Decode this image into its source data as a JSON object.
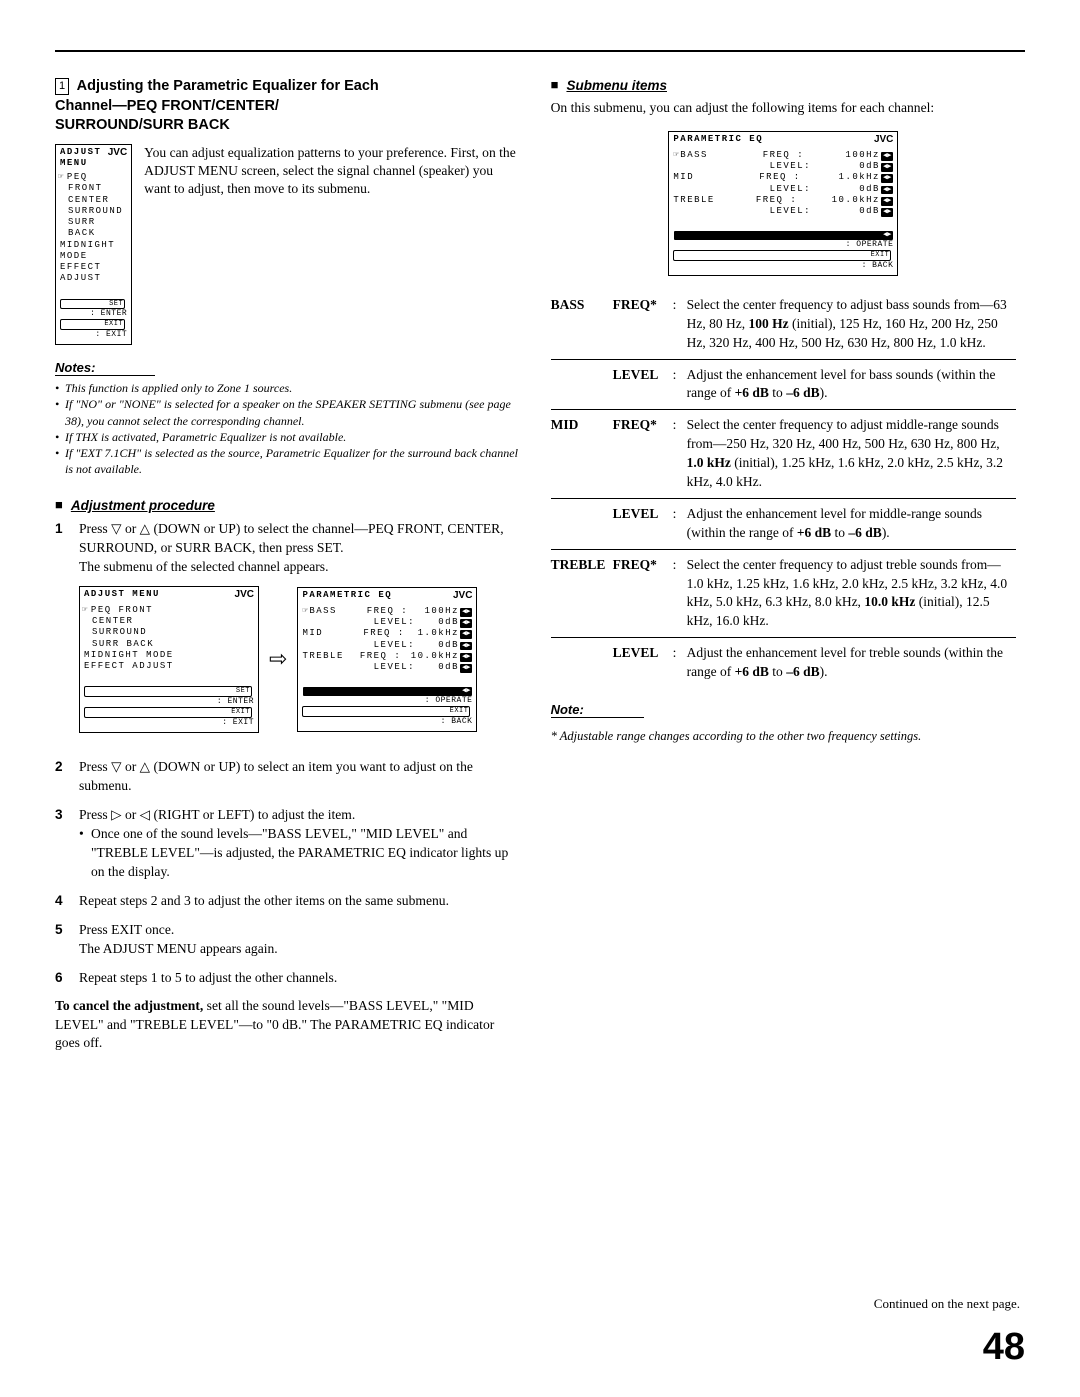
{
  "section_number": "1",
  "section_title_line1": "Adjusting the Parametric Equalizer for Each",
  "section_title_line2": "Channel—PEQ FRONT/CENTER/",
  "section_title_line3": "SURROUND/SURR BACK",
  "intro_para": "You can adjust equalization patterns to your preference. First, on the ADJUST MENU screen, select the signal channel (speaker) you want to adjust, then move to its submenu.",
  "adjust_menu": {
    "title": "ADJUST MENU",
    "brand": "JVC",
    "items": [
      "PEQ FRONT",
      "CENTER",
      "SURROUND",
      "SURR BACK",
      "MIDNIGHT MODE",
      "EFFECT ADJUST"
    ],
    "footer1": "SET",
    "footer1b": ": ENTER",
    "footer2": "EXIT",
    "footer2b": ": EXIT"
  },
  "notes_head": "Notes:",
  "notes": [
    "This function is applied only to Zone 1 sources.",
    "If \"NO\" or \"NONE\" is selected for a speaker on the SPEAKER SETTING submenu (see page 38), you cannot select the corresponding channel.",
    "If THX is activated, Parametric Equalizer is not available.",
    "If \"EXT 7.1CH\" is selected as the source, Parametric Equalizer for the surround back channel is not available."
  ],
  "adj_proc_head": "Adjustment procedure",
  "steps": [
    {
      "n": "1",
      "text": "Press ▽ or △ (DOWN or UP) to select the channel—PEQ FRONT, CENTER, SURROUND, or SURR BACK, then press SET.",
      "after": "The submenu of the selected channel appears."
    },
    {
      "n": "2",
      "text": "Press ▽ or △ (DOWN or UP) to select an item you want to adjust on the submenu."
    },
    {
      "n": "3",
      "text": "Press ▷ or ◁ (RIGHT or LEFT) to adjust the item.",
      "sub": "Once one of the sound levels—\"BASS LEVEL,\" \"MID LEVEL\" and \"TREBLE LEVEL\"—is adjusted, the PARAMETRIC EQ indicator lights up on the display."
    },
    {
      "n": "4",
      "text": "Repeat steps 2 and 3 to adjust the other items on the same submenu."
    },
    {
      "n": "5",
      "text": "Press EXIT once.",
      "after": "The ADJUST MENU appears again."
    },
    {
      "n": "6",
      "text": "Repeat steps 1 to 5 to adjust the other channels."
    }
  ],
  "cancel_lead": "To cancel the adjustment,",
  "cancel_rest": " set all the sound levels—\"BASS LEVEL,\" \"MID LEVEL\" and \"TREBLE LEVEL\"—to \"0 dB.\" The PARAMETRIC EQ indicator goes off.",
  "submenu_head": "Submenu items",
  "submenu_intro": "On this submenu, you can adjust the following items for each channel:",
  "param_menu": {
    "title": "PARAMETRIC EQ",
    "brand": "JVC",
    "rows": [
      {
        "label": "BASS",
        "p": "FREQ :",
        "v": "100Hz"
      },
      {
        "label": "",
        "p": "LEVEL:",
        "v": "0dB"
      },
      {
        "label": "MID",
        "p": "FREQ :",
        "v": "1.0kHz"
      },
      {
        "label": "",
        "p": "LEVEL:",
        "v": "0dB"
      },
      {
        "label": "TREBLE",
        "p": "FREQ :",
        "v": "10.0kHz"
      },
      {
        "label": "",
        "p": "LEVEL:",
        "v": "0dB"
      }
    ],
    "footer1b": ": OPERATE",
    "footer2": "EXIT",
    "footer2b": ": BACK"
  },
  "defs": [
    {
      "band": "BASS",
      "param": "FREQ*",
      "desc": "Select the center frequency to adjust bass sounds from—63 Hz, 80 Hz, <b>100 Hz</b> (initial), 125 Hz, 160 Hz, 200 Hz, 250 Hz, 320 Hz, 400 Hz, 500 Hz, 630 Hz, 800 Hz, 1.0 kHz."
    },
    {
      "band": "",
      "param": "LEVEL",
      "desc": "Adjust the enhancement level for bass sounds (within the range of <b>+6 dB</b> to <b>–6 dB</b>)."
    },
    {
      "band": "MID",
      "param": "FREQ*",
      "desc": "Select the center frequency to adjust middle-range sounds from—250 Hz, 320 Hz, 400 Hz, 500 Hz, 630 Hz, 800 Hz, <b>1.0 kHz</b> (initial), 1.25 kHz, 1.6 kHz, 2.0 kHz, 2.5 kHz, 3.2 kHz, 4.0 kHz."
    },
    {
      "band": "",
      "param": "LEVEL",
      "desc": "Adjust the enhancement level for middle-range sounds (within the range of <b>+6 dB</b> to <b>–6 dB</b>)."
    },
    {
      "band": "TREBLE",
      "param": "FREQ*",
      "desc": "Select the center frequency to adjust treble sounds from—1.0 kHz, 1.25 kHz, 1.6 kHz, 2.0 kHz, 2.5 kHz, 3.2 kHz, 4.0 kHz, 5.0 kHz, 6.3 kHz, 8.0 kHz, <b>10.0 kHz</b> (initial), 12.5 kHz, 16.0 kHz."
    },
    {
      "band": "",
      "param": "LEVEL",
      "desc": "Adjust the enhancement level for treble sounds (within the range of <b>+6 dB</b> to <b>–6 dB</b>)."
    }
  ],
  "note2_head": "Note:",
  "note2_body": "* Adjustable range changes according to the other two frequency settings.",
  "continued": "Continued on the next page.",
  "page": "48"
}
